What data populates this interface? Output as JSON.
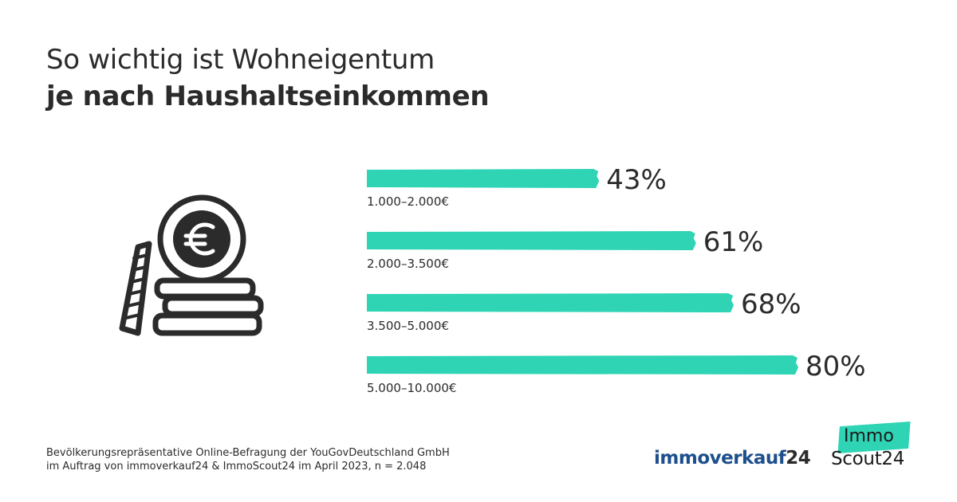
{
  "title": {
    "line1": "So wichtig ist Wohneigentum",
    "line2": "je nach Haushaltseinkommen"
  },
  "chart_data": {
    "type": "bar",
    "orientation": "horizontal",
    "title": "So wichtig ist Wohneigentum je nach Haushaltseinkommen",
    "categories": [
      "1.000–2.000€",
      "2.000–3.500€",
      "3.500–5.000€",
      "5.000–10.000€"
    ],
    "values": [
      43,
      61,
      68,
      80
    ],
    "value_labels": [
      "43%",
      "61%",
      "68%",
      "80%"
    ],
    "unit": "%",
    "xlim": [
      0,
      100
    ],
    "bar_color": "#2ed4b4",
    "grid": false,
    "legend": "none"
  },
  "footnote": {
    "line1": "Bevölkerungsrepräsentative Online-Befragung der YouGovDeutschland GmbH",
    "line2": "im Auftrag von immoverkauf24 & ImmoScout24 im April 2023, n = 2.048"
  },
  "brands": {
    "immoverkauf_word": "immoverkauf",
    "immoverkauf_num": "24",
    "immoscout_top": "Immo",
    "immoscout_bottom": "Scout24"
  },
  "colors": {
    "accent": "#2ed4b4",
    "text": "#2b2b2b",
    "brand_blue": "#1d4f8c"
  }
}
